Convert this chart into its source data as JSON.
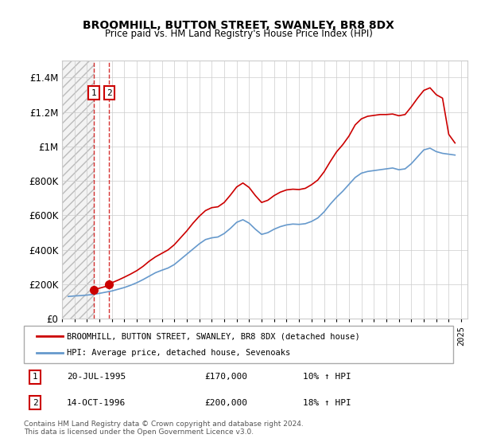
{
  "title": "BROOMHILL, BUTTON STREET, SWANLEY, BR8 8DX",
  "subtitle": "Price paid vs. HM Land Registry's House Price Index (HPI)",
  "legend_line1": "BROOMHILL, BUTTON STREET, SWANLEY, BR8 8DX (detached house)",
  "legend_line2": "HPI: Average price, detached house, Sevenoaks",
  "transaction1_label": "1",
  "transaction1_date": "20-JUL-1995",
  "transaction1_price": "£170,000",
  "transaction1_hpi": "10% ↑ HPI",
  "transaction2_label": "2",
  "transaction2_date": "14-OCT-1996",
  "transaction2_price": "£200,000",
  "transaction2_hpi": "18% ↑ HPI",
  "footer": "Contains HM Land Registry data © Crown copyright and database right 2024.\nThis data is licensed under the Open Government Licence v3.0.",
  "property_color": "#cc0000",
  "hpi_color": "#6699cc",
  "hatch_color": "#cccccc",
  "ylim": [
    0,
    1500000
  ],
  "yticks": [
    0,
    200000,
    400000,
    600000,
    800000,
    1000000,
    1200000,
    1400000
  ],
  "ytick_labels": [
    "£0",
    "£200K",
    "£400K",
    "£600K",
    "£800K",
    "£1M",
    "£1.2M",
    "£1.4M"
  ],
  "transaction1_x": 1995.55,
  "transaction1_y": 170000,
  "transaction2_x": 1996.79,
  "transaction2_y": 200000,
  "xlim_start": 1993,
  "xlim_end": 2025.5
}
